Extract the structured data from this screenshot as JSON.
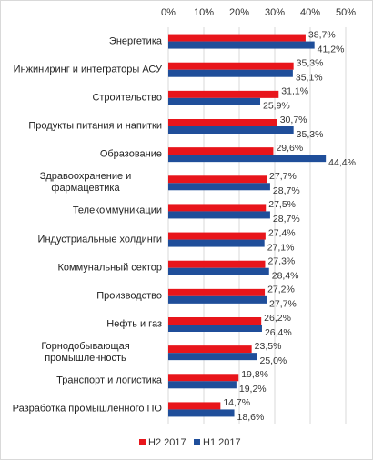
{
  "chart_data": {
    "type": "hbar",
    "categories": [
      "Энергетика",
      "Инжиниринг и интеграторы АСУ",
      "Строительство",
      "Продукты питания и напитки",
      "Образование",
      "Здравоохранение и фармацевтика",
      "Телекоммуникации",
      "Индустриальные холдинги",
      "Коммунальный сектор",
      "Производство",
      "Нефть и газ",
      "Горнодобывающая промышленность",
      "Транспорт и логистика",
      "Разработка промышленного ПО"
    ],
    "series": [
      {
        "name": "H2 2017",
        "color": "#e8151b",
        "values": [
          38.7,
          35.3,
          31.1,
          30.7,
          29.6,
          27.7,
          27.5,
          27.4,
          27.3,
          27.2,
          26.2,
          23.5,
          19.8,
          14.7
        ],
        "value_labels": [
          "38,7%",
          "35,3%",
          "31,1%",
          "30,7%",
          "29,6%",
          "27,7%",
          "27,5%",
          "27,4%",
          "27,3%",
          "27,2%",
          "26,2%",
          "23,5%",
          "19,8%",
          "14,7%"
        ]
      },
      {
        "name": "H1 2017",
        "color": "#1f4e9a",
        "values": [
          41.2,
          35.1,
          25.9,
          35.3,
          44.4,
          28.7,
          28.7,
          27.1,
          28.4,
          27.7,
          26.4,
          25.0,
          19.2,
          18.6
        ],
        "value_labels": [
          "41,2%",
          "35,1%",
          "25,9%",
          "35,3%",
          "44,4%",
          "28,7%",
          "28,7%",
          "27,1%",
          "28,4%",
          "27,7%",
          "26,4%",
          "25,0%",
          "19,2%",
          "18,6%"
        ]
      }
    ],
    "xlim": [
      0,
      50
    ],
    "xticks": [
      {
        "value": 0,
        "label": "0%"
      },
      {
        "value": 10,
        "label": "10%"
      },
      {
        "value": 20,
        "label": "20%"
      },
      {
        "value": 30,
        "label": "30%"
      },
      {
        "value": 40,
        "label": "40%"
      },
      {
        "value": 50,
        "label": "50%"
      }
    ],
    "grid": true,
    "legend": "bottom"
  }
}
